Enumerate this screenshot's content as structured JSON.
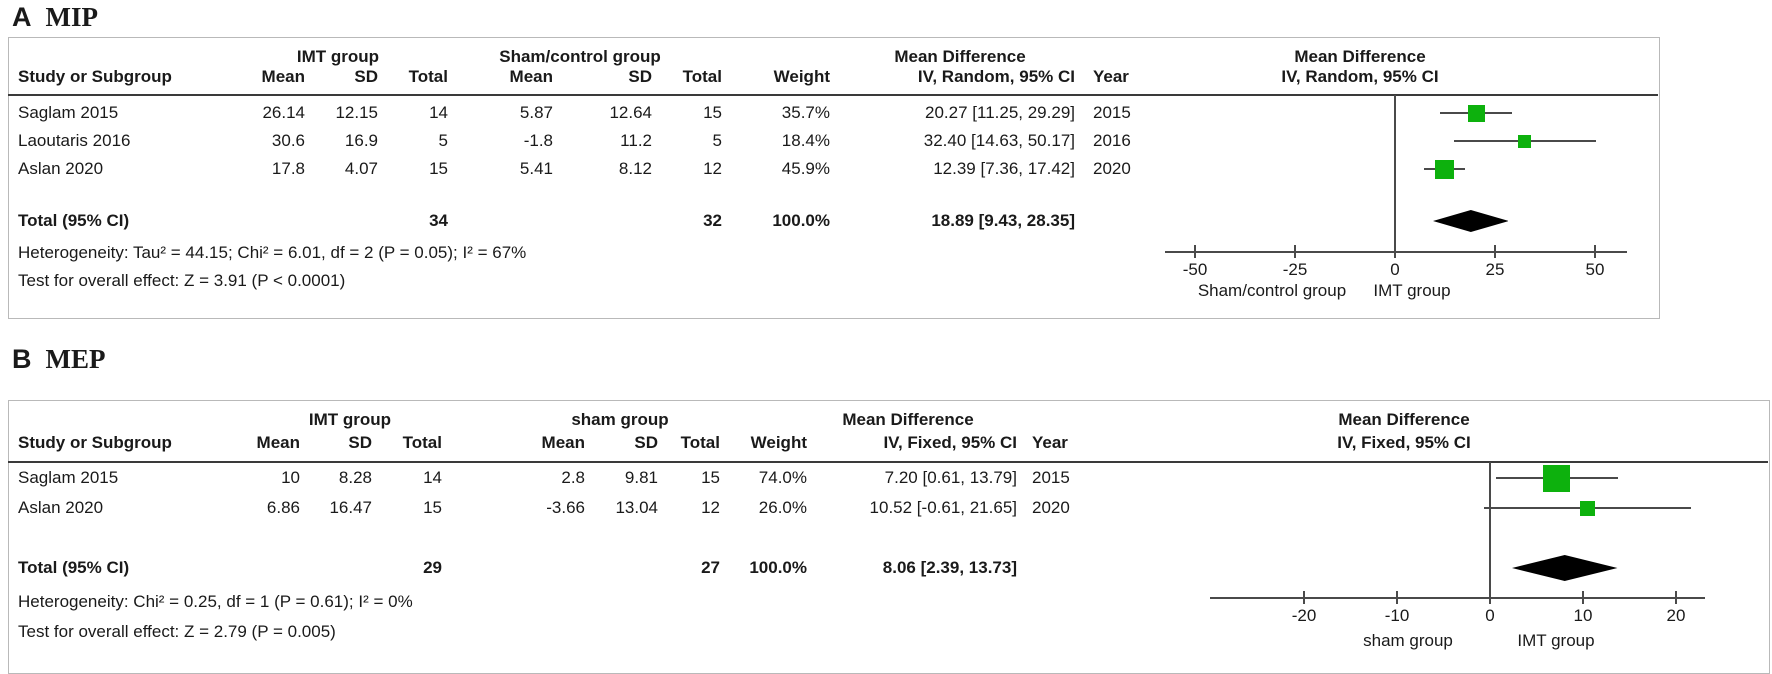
{
  "marker_color": "#0db10d",
  "line_color": "#4a4a4a",
  "chart_data": [
    {
      "type": "forest",
      "panel": "A",
      "title": "MIP",
      "effect_measure": "Mean Difference",
      "model": "IV, Random, 95% CI",
      "group1": "IMT group",
      "group2": "Sham/control group",
      "columns": {
        "study": "Study or Subgroup",
        "mean": "Mean",
        "sd": "SD",
        "total": "Total",
        "weight": "Weight",
        "year": "Year"
      },
      "studies": [
        {
          "study": "Saglam 2015",
          "mean1": "26.14",
          "sd1": "12.15",
          "total1": "14",
          "mean2": "5.87",
          "sd2": "12.64",
          "total2": "15",
          "weight": "35.7%",
          "ci_text": "20.27 [11.25, 29.29]",
          "year": "2015",
          "md": 20.27,
          "ci_low": 11.25,
          "ci_high": 29.29
        },
        {
          "study": "Laoutaris 2016",
          "mean1": "30.6",
          "sd1": "16.9",
          "total1": "5",
          "mean2": "-1.8",
          "sd2": "11.2",
          "total2": "5",
          "weight": "18.4%",
          "ci_text": "32.40 [14.63, 50.17]",
          "year": "2016",
          "md": 32.4,
          "ci_low": 14.63,
          "ci_high": 50.17
        },
        {
          "study": "Aslan 2020",
          "mean1": "17.8",
          "sd1": "4.07",
          "total1": "15",
          "mean2": "5.41",
          "sd2": "8.12",
          "total2": "12",
          "weight": "45.9%",
          "ci_text": "12.39 [7.36, 17.42]",
          "year": "2020",
          "md": 12.39,
          "ci_low": 7.36,
          "ci_high": 17.42
        }
      ],
      "total": {
        "label": "Total (95% CI)",
        "total1": "34",
        "total2": "32",
        "weight": "100.0%",
        "ci_text": "18.89 [9.43, 28.35]",
        "md": 18.89,
        "ci_low": 9.43,
        "ci_high": 28.35
      },
      "heterogeneity": "Heterogeneity: Tau² = 44.15; Chi² = 6.01, df = 2 (P = 0.05); I² = 67%",
      "overall_effect": "Test for overall effect: Z = 3.91 (P < 0.0001)",
      "axis": {
        "ticks": [
          -50,
          -25,
          0,
          25,
          50
        ],
        "min": -57,
        "max": 58,
        "favors_left": "Sham/control group",
        "favors_right": "IMT group"
      }
    },
    {
      "type": "forest",
      "panel": "B",
      "title": "MEP",
      "effect_measure": "Mean Difference",
      "model": "IV, Fixed, 95% CI",
      "group1": "IMT group",
      "group2": "sham group",
      "columns": {
        "study": "Study or Subgroup",
        "mean": "Mean",
        "sd": "SD",
        "total": "Total",
        "weight": "Weight",
        "year": "Year"
      },
      "studies": [
        {
          "study": "Saglam 2015",
          "mean1": "10",
          "sd1": "8.28",
          "total1": "14",
          "mean2": "2.8",
          "sd2": "9.81",
          "total2": "15",
          "weight": "74.0%",
          "ci_text": "7.20 [0.61, 13.79]",
          "year": "2015",
          "md": 7.2,
          "ci_low": 0.61,
          "ci_high": 13.79
        },
        {
          "study": "Aslan 2020",
          "mean1": "6.86",
          "sd1": "16.47",
          "total1": "15",
          "mean2": "-3.66",
          "sd2": "13.04",
          "total2": "12",
          "weight": "26.0%",
          "ci_text": "10.52 [-0.61, 21.65]",
          "year": "2020",
          "md": 10.52,
          "ci_low": -0.61,
          "ci_high": 21.65
        }
      ],
      "total": {
        "label": "Total (95% CI)",
        "total1": "29",
        "total2": "27",
        "weight": "100.0%",
        "ci_text": "8.06 [2.39, 13.73]",
        "md": 8.06,
        "ci_low": 2.39,
        "ci_high": 13.73
      },
      "heterogeneity": "Heterogeneity: Chi² = 0.25, df = 1 (P = 0.61); I² = 0%",
      "overall_effect": "Test for overall effect: Z = 2.79 (P = 0.005)",
      "axis": {
        "ticks": [
          -20,
          -10,
          0,
          10,
          20
        ],
        "min": -30,
        "max": 23,
        "favors_left": "sham group",
        "favors_right": "IMT group"
      }
    }
  ]
}
